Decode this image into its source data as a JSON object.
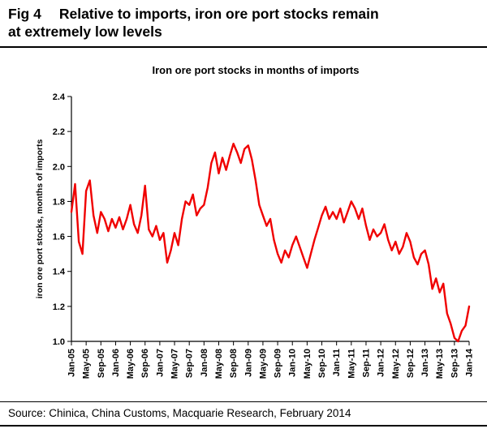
{
  "header": {
    "fig_label": "Fig 4",
    "title_line1": "Relative to imports, iron ore port stocks remain",
    "title_line2": "at extremely low levels"
  },
  "footer": {
    "source": "Source: Chinica, China Customs, Macquarie Research, February 2014"
  },
  "chart_data": {
    "type": "line",
    "title": "Iron ore port stocks in months of imports",
    "xlabel": "",
    "ylabel": "iron ore port stocks, months of imports",
    "ylim": [
      1.0,
      2.4
    ],
    "ytick_step": 0.2,
    "x_tick_interval": 4,
    "grid": false,
    "legend": "none",
    "line_color": "#f00000",
    "categories": [
      "Jan-05",
      "Feb-05",
      "Mar-05",
      "Apr-05",
      "May-05",
      "Jun-05",
      "Jul-05",
      "Aug-05",
      "Sep-05",
      "Oct-05",
      "Nov-05",
      "Dec-05",
      "Jan-06",
      "Feb-06",
      "Mar-06",
      "Apr-06",
      "May-06",
      "Jun-06",
      "Jul-06",
      "Aug-06",
      "Sep-06",
      "Oct-06",
      "Nov-06",
      "Dec-06",
      "Jan-07",
      "Feb-07",
      "Mar-07",
      "Apr-07",
      "May-07",
      "Jun-07",
      "Jul-07",
      "Aug-07",
      "Sep-07",
      "Oct-07",
      "Nov-07",
      "Dec-07",
      "Jan-08",
      "Feb-08",
      "Mar-08",
      "Apr-08",
      "May-08",
      "Jun-08",
      "Jul-08",
      "Aug-08",
      "Sep-08",
      "Oct-08",
      "Nov-08",
      "Dec-08",
      "Jan-09",
      "Feb-09",
      "Mar-09",
      "Apr-09",
      "May-09",
      "Jun-09",
      "Jul-09",
      "Aug-09",
      "Sep-09",
      "Oct-09",
      "Nov-09",
      "Dec-09",
      "Jan-10",
      "Feb-10",
      "Mar-10",
      "Apr-10",
      "May-10",
      "Jun-10",
      "Jul-10",
      "Aug-10",
      "Sep-10",
      "Oct-10",
      "Nov-10",
      "Dec-10",
      "Jan-11",
      "Feb-11",
      "Mar-11",
      "Apr-11",
      "May-11",
      "Jun-11",
      "Jul-11",
      "Aug-11",
      "Sep-11",
      "Oct-11",
      "Nov-11",
      "Dec-11",
      "Jan-12",
      "Feb-12",
      "Mar-12",
      "Apr-12",
      "May-12",
      "Jun-12",
      "Jul-12",
      "Aug-12",
      "Sep-12",
      "Oct-12",
      "Nov-12",
      "Dec-12",
      "Jan-13",
      "Feb-13",
      "Mar-13",
      "Apr-13",
      "May-13",
      "Jun-13",
      "Jul-13",
      "Aug-13",
      "Sep-13",
      "Oct-13",
      "Nov-13",
      "Dec-13",
      "Jan-14"
    ],
    "values": [
      1.74,
      1.9,
      1.57,
      1.5,
      1.86,
      1.92,
      1.72,
      1.62,
      1.74,
      1.7,
      1.63,
      1.7,
      1.65,
      1.71,
      1.64,
      1.7,
      1.78,
      1.67,
      1.62,
      1.72,
      1.89,
      1.64,
      1.6,
      1.66,
      1.58,
      1.62,
      1.45,
      1.52,
      1.62,
      1.55,
      1.7,
      1.8,
      1.78,
      1.84,
      1.72,
      1.76,
      1.78,
      1.88,
      2.02,
      2.08,
      1.96,
      2.05,
      1.98,
      2.06,
      2.13,
      2.08,
      2.02,
      2.1,
      2.12,
      2.04,
      1.92,
      1.78,
      1.72,
      1.66,
      1.7,
      1.58,
      1.5,
      1.45,
      1.52,
      1.48,
      1.55,
      1.6,
      1.54,
      1.48,
      1.42,
      1.5,
      1.58,
      1.65,
      1.72,
      1.77,
      1.7,
      1.74,
      1.7,
      1.76,
      1.68,
      1.74,
      1.8,
      1.76,
      1.7,
      1.76,
      1.66,
      1.58,
      1.64,
      1.6,
      1.62,
      1.67,
      1.58,
      1.52,
      1.57,
      1.5,
      1.54,
      1.62,
      1.57,
      1.48,
      1.44,
      1.5,
      1.52,
      1.44,
      1.3,
      1.36,
      1.28,
      1.33,
      1.16,
      1.1,
      1.02,
      1.0,
      1.06,
      1.09,
      1.2
    ]
  }
}
